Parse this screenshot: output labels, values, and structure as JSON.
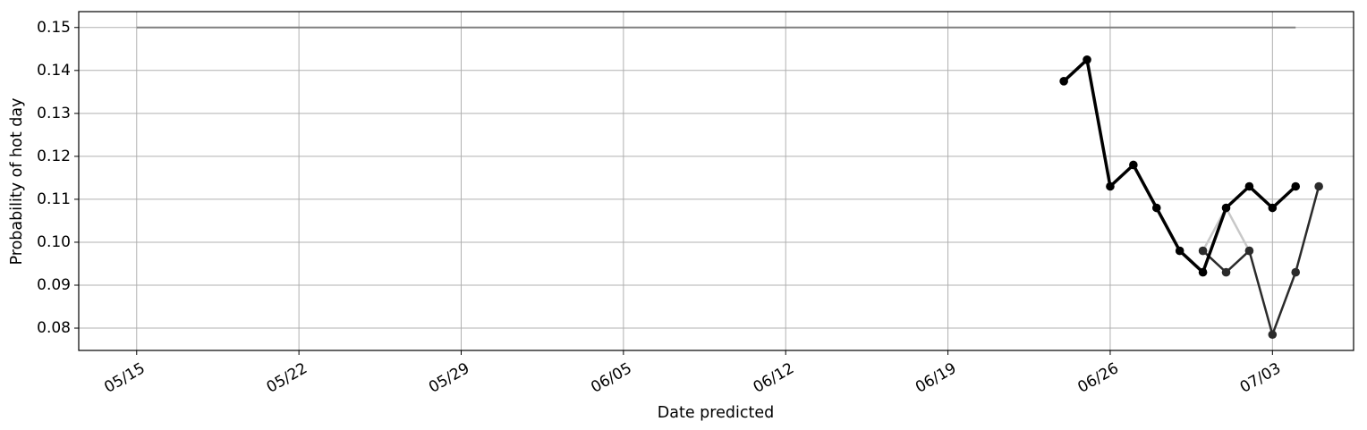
{
  "chart_data": {
    "type": "line",
    "title": "",
    "xlabel": "Date predicted",
    "ylabel": "Probability of hot day",
    "x_ticks": [
      "05/15",
      "05/22",
      "05/29",
      "06/05",
      "06/12",
      "06/19",
      "06/26",
      "07/03"
    ],
    "y_ticks": [
      "0.08",
      "0.09",
      "0.10",
      "0.11",
      "0.12",
      "0.13",
      "0.14",
      "0.15"
    ],
    "xlim": [
      "2023-05-12.5",
      "2023-07-06.5"
    ],
    "ylim": [
      0.0748,
      0.1537
    ],
    "grid": true,
    "reference_line": {
      "y": 0.15,
      "x_start": "2023-05-15",
      "x_end": "2023-07-04",
      "color": "#808080"
    },
    "series": [
      {
        "color": "#c8c8c8",
        "points": [
          [
            "2023-06-30",
            0.098
          ],
          [
            "2023-07-01",
            0.108
          ],
          [
            "2023-07-02",
            0.098
          ]
        ]
      },
      {
        "color": "#2b2b2b",
        "points": [
          [
            "2023-06-30",
            0.098
          ],
          [
            "2023-07-01",
            0.093
          ],
          [
            "2023-07-02",
            0.098
          ],
          [
            "2023-07-03",
            0.0785
          ],
          [
            "2023-07-04",
            0.093
          ],
          [
            "2023-07-05",
            0.113
          ]
        ]
      },
      {
        "color": "#000000",
        "points": [
          [
            "2023-06-24",
            0.1375
          ],
          [
            "2023-06-25",
            0.1425
          ],
          [
            "2023-06-26",
            0.113
          ],
          [
            "2023-06-27",
            0.118
          ],
          [
            "2023-06-28",
            0.108
          ],
          [
            "2023-06-29",
            0.098
          ],
          [
            "2023-06-30",
            0.093
          ],
          [
            "2023-07-01",
            0.108
          ],
          [
            "2023-07-02",
            0.113
          ],
          [
            "2023-07-03",
            0.108
          ],
          [
            "2023-07-04",
            0.113
          ]
        ]
      }
    ]
  }
}
